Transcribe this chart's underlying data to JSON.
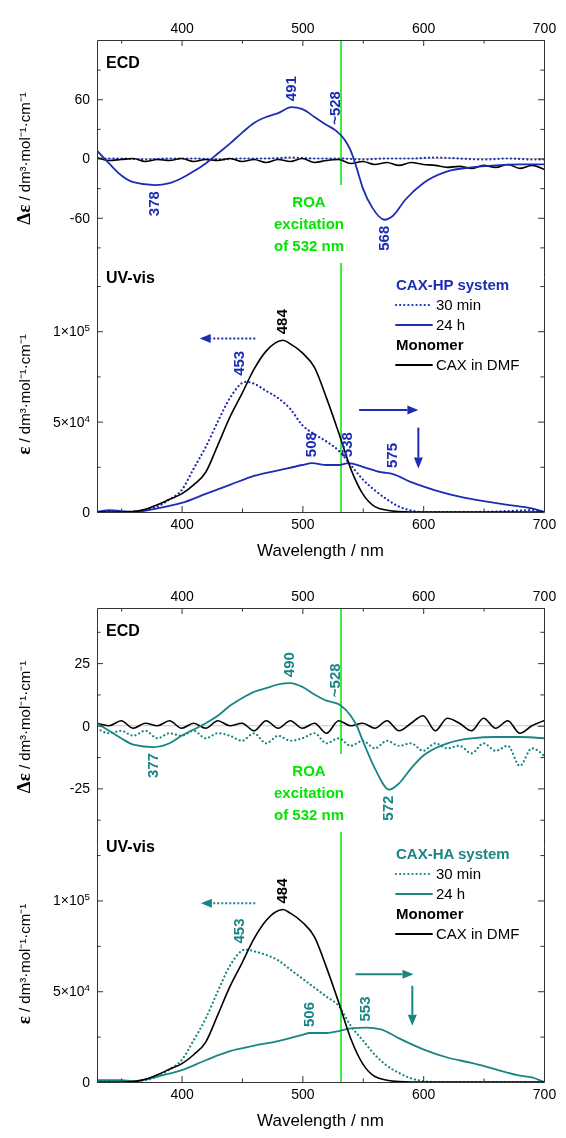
{
  "chart_data": [
    {
      "type": "line",
      "xlim": [
        330,
        700
      ],
      "xticks": [
        {
          "value": 350,
          "label": null
        },
        400,
        {
          "value": 450,
          "label": null
        },
        500,
        {
          "value": 550,
          "label": null
        },
        600,
        {
          "value": 650,
          "label": null
        },
        700
      ],
      "ylim": [
        -120,
        120
      ],
      "yticks": [
        {
          "value": -90,
          "label": null
        },
        -60,
        {
          "value": -30,
          "label": null
        },
        0,
        {
          "value": 30,
          "label": null
        },
        60,
        {
          "value": 90,
          "label": null
        }
      ],
      "ylabel": "Δε / dm³·mol⁻¹·cm⁻¹",
      "annotations": [
        "ECD",
        {
          "text": "378",
          "x": 378,
          "y": -27
        },
        {
          "text": "491",
          "x": 491,
          "y": 52
        },
        {
          "text": "~528",
          "x": 528,
          "y": 28
        },
        {
          "text": "568",
          "x": 568,
          "y": -62
        }
      ],
      "ref_lines": [
        {
          "axis": "y",
          "value": 0,
          "color": "#c8c8c8"
        },
        {
          "axis": "x",
          "value": 532,
          "label": "ROA excitation of 532 nm",
          "color": "#00e600"
        }
      ],
      "series": [
        {
          "color": "#1b2db3",
          "line_style": "dotted",
          "x": [
            330,
            350,
            370,
            390,
            410,
            430,
            450,
            470,
            490,
            510,
            530,
            550,
            570,
            590,
            610,
            630,
            650,
            670,
            690,
            700
          ],
          "values": [
            0,
            0,
            -1,
            0,
            0,
            -1,
            0,
            0,
            1,
            0,
            0,
            -1,
            0,
            0,
            1,
            0,
            -1,
            0,
            -1,
            -1
          ]
        },
        {
          "color": "#000000",
          "line_style": "solid",
          "x": [
            330,
            340,
            350,
            360,
            370,
            380,
            390,
            400,
            410,
            420,
            430,
            440,
            450,
            460,
            470,
            480,
            490,
            500,
            510,
            520,
            530,
            540,
            550,
            560,
            570,
            580,
            590,
            600,
            610,
            620,
            630,
            640,
            650,
            660,
            670,
            680,
            690,
            700
          ],
          "values": [
            1,
            -2,
            -1,
            0,
            -3,
            -1,
            -2,
            0,
            -3,
            -1,
            -2,
            0,
            -3,
            -1,
            -4,
            -1,
            -3,
            0,
            -4,
            -2,
            -1,
            -5,
            -3,
            -6,
            -4,
            -7,
            -4,
            -6,
            -7,
            -9,
            -8,
            -10,
            -7,
            -9,
            -6,
            -10,
            -7,
            -11
          ]
        },
        {
          "color": "#1b2db3",
          "line_style": "solid",
          "x": [
            330,
            340,
            350,
            360,
            378,
            390,
            400,
            410,
            420,
            430,
            440,
            450,
            460,
            470,
            480,
            491,
            500,
            510,
            520,
            528,
            535,
            540,
            545,
            550,
            558,
            568,
            575,
            585,
            600,
            620,
            640,
            660,
            680,
            700
          ],
          "values": [
            8,
            -5,
            -17,
            -24,
            -27,
            -25,
            -20,
            -13,
            -5,
            5,
            15,
            26,
            36,
            42,
            46,
            52,
            50,
            42,
            34,
            28,
            19,
            8,
            -10,
            -30,
            -50,
            -62,
            -58,
            -42,
            -25,
            -13,
            -9,
            -7,
            -6,
            -6
          ]
        }
      ]
    },
    {
      "type": "line",
      "xlim": [
        330,
        700
      ],
      "xticks": [
        {
          "value": 350,
          "label": null
        },
        400,
        {
          "value": 450,
          "label": null
        },
        500,
        {
          "value": 550,
          "label": null
        },
        600,
        {
          "value": 650,
          "label": null
        },
        700
      ],
      "ylim": [
        0,
        130000
      ],
      "yticks": [
        0,
        {
          "value": 25000,
          "label": null
        },
        {
          "value": 50000,
          "label": "5×10$^{4}$"
        },
        {
          "value": 75000,
          "label": null
        },
        {
          "value": 100000,
          "label": "1×10$^{5}$"
        },
        {
          "value": 125000,
          "label": null
        }
      ],
      "xlabel": "Wavelength / nm",
      "ylabel": "ε / dm³·mol⁻¹·cm⁻¹",
      "legend": "top right",
      "legend_title": "CAX-HP system",
      "annotations": [
        "UV-vis",
        {
          "text": "484",
          "x": 484,
          "y": 95000
        },
        {
          "text": "453",
          "x": 448,
          "y": 72000
        },
        {
          "text": "508",
          "x": 508,
          "y": 27000
        },
        {
          "text": "538",
          "x": 538,
          "y": 27000
        },
        {
          "text": "575",
          "x": 575,
          "y": 21000
        },
        "Monomer"
      ],
      "ref_lines": [
        {
          "axis": "x",
          "value": 532,
          "color": "#00e600"
        }
      ],
      "series": [
        {
          "name": "30 min",
          "color": "#1b2db3",
          "line_style": "dotted",
          "x": [
            330,
            350,
            360,
            370,
            380,
            390,
            400,
            410,
            420,
            430,
            440,
            453,
            460,
            470,
            480,
            490,
            500,
            510,
            520,
            530,
            540,
            550,
            560,
            570,
            580,
            590,
            600,
            640,
            670,
            690,
            700
          ],
          "values": [
            0,
            0,
            300,
            1000,
            3000,
            7000,
            12000,
            24000,
            36000,
            50000,
            63000,
            72000,
            71000,
            67000,
            63000,
            57000,
            48000,
            43000,
            39000,
            34000,
            26000,
            18000,
            12000,
            7000,
            3000,
            800,
            0,
            0,
            500,
            1000,
            0
          ]
        },
        {
          "name": "24 h",
          "color": "#1b2db3",
          "line_style": "solid",
          "x": [
            330,
            340,
            350,
            360,
            380,
            400,
            420,
            440,
            460,
            480,
            500,
            508,
            520,
            530,
            538,
            550,
            565,
            575,
            590,
            610,
            630,
            650,
            670,
            690,
            700
          ],
          "values": [
            0,
            1000,
            500,
            0,
            2000,
            5000,
            10000,
            15000,
            20000,
            23000,
            26000,
            27000,
            26000,
            26000,
            27000,
            25000,
            22000,
            21000,
            16500,
            12000,
            8500,
            6000,
            4000,
            2000,
            0
          ]
        },
        {
          "name": "CAX in DMF",
          "color": "#000000",
          "line_style": "solid",
          "x": [
            330,
            350,
            360,
            370,
            380,
            390,
            400,
            410,
            420,
            430,
            440,
            450,
            460,
            470,
            484,
            490,
            500,
            510,
            520,
            530,
            540,
            550,
            560,
            570,
            580,
            590,
            700
          ],
          "values": [
            0,
            0,
            200,
            1500,
            4000,
            7000,
            10000,
            15000,
            22000,
            37000,
            52500,
            65500,
            79000,
            89000,
            95000,
            93000,
            88000,
            80000,
            63000,
            44000,
            24000,
            10000,
            3000,
            1000,
            200,
            0,
            0
          ]
        }
      ]
    },
    {
      "type": "line",
      "xlim": [
        330,
        700
      ],
      "xticks": [
        {
          "value": 350,
          "label": null
        },
        400,
        {
          "value": 450,
          "label": null
        },
        500,
        {
          "value": 550,
          "label": null
        },
        600,
        {
          "value": 650,
          "label": null
        },
        700
      ],
      "ylim": [
        -48,
        47
      ],
      "yticks": [
        {
          "value": -37.5,
          "label": null
        },
        -25,
        {
          "value": -12.5,
          "label": null
        },
        0,
        {
          "value": 12.5,
          "label": null
        },
        25,
        {
          "value": 37.5,
          "label": null
        }
      ],
      "ylabel": "Δε / dm³·mol⁻¹·cm⁻¹",
      "annotations": [
        "ECD",
        {
          "text": "377",
          "x": 377,
          "y": -8.5
        },
        {
          "text": "490",
          "x": 490,
          "y": 17
        },
        {
          "text": "~528",
          "x": 528,
          "y": 9
        },
        {
          "text": "572",
          "x": 572,
          "y": -25.5
        }
      ],
      "ref_lines": [
        {
          "axis": "y",
          "value": 0,
          "color": "#c8c8c8"
        },
        {
          "axis": "x",
          "value": 532,
          "label": "ROA excitation of 532 nm",
          "color": "#00e600"
        }
      ],
      "series": [
        {
          "color": "#1a8585",
          "line_style": "dotted",
          "x": [
            330,
            340,
            350,
            360,
            370,
            380,
            390,
            400,
            410,
            420,
            430,
            440,
            450,
            460,
            470,
            480,
            490,
            500,
            510,
            520,
            530,
            540,
            550,
            560,
            570,
            580,
            590,
            600,
            610,
            620,
            630,
            640,
            650,
            660,
            670,
            680,
            690,
            700
          ],
          "values": [
            -1,
            -3,
            -2,
            -4,
            -2,
            -5,
            -3,
            -4,
            -2,
            -5,
            -3,
            -4,
            -6,
            -3,
            -7,
            -4,
            -6,
            -5,
            -3,
            -7,
            -5,
            -8,
            -6,
            -9,
            -6,
            -8,
            -7,
            -10,
            -7,
            -9,
            -8,
            -11,
            -7,
            -10,
            -8,
            -16,
            -9,
            -12
          ]
        },
        {
          "color": "#000000",
          "line_style": "solid",
          "x": [
            330,
            340,
            350,
            360,
            370,
            380,
            390,
            400,
            410,
            420,
            430,
            440,
            450,
            460,
            470,
            480,
            490,
            500,
            510,
            520,
            530,
            540,
            550,
            560,
            570,
            580,
            590,
            600,
            610,
            620,
            630,
            640,
            650,
            660,
            670,
            680,
            690,
            700
          ],
          "values": [
            1,
            0,
            2,
            -1,
            1,
            0,
            2,
            -1,
            1,
            -1,
            2,
            0,
            1,
            -2,
            2,
            -1,
            2,
            -1,
            1,
            -3,
            2,
            0,
            1,
            -1,
            2,
            -2,
            1,
            4,
            -2,
            3,
            1,
            -2,
            3,
            -1,
            2,
            -3,
            0,
            2
          ]
        },
        {
          "color": "#1a8585",
          "line_style": "solid",
          "x": [
            330,
            340,
            350,
            360,
            377,
            390,
            400,
            410,
            420,
            430,
            440,
            450,
            460,
            470,
            480,
            490,
            500,
            510,
            520,
            528,
            532,
            540,
            545,
            550,
            560,
            572,
            580,
            590,
            600,
            610,
            620,
            640,
            660,
            680,
            700
          ],
          "values": [
            1,
            -2,
            -5,
            -7.5,
            -8.5,
            -7,
            -4,
            -1.5,
            1,
            4,
            8,
            11,
            13.5,
            15,
            16.5,
            17,
            15.5,
            12.5,
            10,
            9,
            8,
            4,
            0,
            -6,
            -17,
            -25.5,
            -23,
            -17,
            -12,
            -9,
            -7,
            -5,
            -4.5,
            -4.5,
            -5
          ]
        }
      ]
    },
    {
      "type": "line",
      "xlim": [
        330,
        700
      ],
      "xticks": [
        {
          "value": 350,
          "label": null
        },
        400,
        {
          "value": 450,
          "label": null
        },
        500,
        {
          "value": 550,
          "label": null
        },
        600,
        {
          "value": 650,
          "label": null
        },
        700
      ],
      "ylim": [
        0,
        130000
      ],
      "yticks": [
        0,
        {
          "value": 25000,
          "label": null
        },
        {
          "value": 50000,
          "label": "5×10$^{4}$"
        },
        {
          "value": 75000,
          "label": null
        },
        {
          "value": 100000,
          "label": "1×10$^{5}$"
        },
        {
          "value": 125000,
          "label": null
        }
      ],
      "xlabel": "Wavelength / nm",
      "ylabel": "ε / dm³·mol⁻¹·cm⁻¹",
      "legend": "top right",
      "legend_title": "CAX-HA system",
      "annotations": [
        "UV-vis",
        {
          "text": "484",
          "x": 484,
          "y": 95000
        },
        {
          "text": "453",
          "x": 448,
          "y": 73000
        },
        {
          "text": "506",
          "x": 506,
          "y": 27000
        },
        {
          "text": "553",
          "x": 553,
          "y": 30000
        },
        "Monomer"
      ],
      "ref_lines": [
        {
          "axis": "x",
          "value": 532,
          "color": "#00e600"
        }
      ],
      "series": [
        {
          "name": "30 min",
          "color": "#1a8585",
          "line_style": "dotted",
          "x": [
            330,
            350,
            360,
            370,
            380,
            390,
            400,
            410,
            420,
            430,
            440,
            453,
            460,
            470,
            480,
            490,
            500,
            510,
            520,
            530,
            540,
            550,
            560,
            570,
            580,
            590,
            600,
            610,
            700
          ],
          "values": [
            0,
            0,
            300,
            1000,
            3000,
            7000,
            12000,
            23000,
            35000,
            50000,
            64000,
            73000,
            72000,
            70000,
            67000,
            62000,
            57000,
            52000,
            47000,
            42000,
            31000,
            23000,
            15000,
            9000,
            5000,
            2000,
            500,
            0,
            0
          ]
        },
        {
          "name": "24 h",
          "color": "#1a8585",
          "line_style": "solid",
          "x": [
            330,
            350,
            360,
            380,
            400,
            420,
            440,
            460,
            480,
            500,
            506,
            520,
            530,
            540,
            553,
            565,
            580,
            600,
            620,
            640,
            660,
            680,
            690,
            700
          ],
          "values": [
            1000,
            1000,
            500,
            3000,
            6500,
            12000,
            17000,
            20000,
            22500,
            26000,
            27000,
            27000,
            28000,
            29500,
            30000,
            29000,
            24000,
            18000,
            13500,
            10500,
            7000,
            3500,
            2500,
            0
          ]
        },
        {
          "name": "CAX in DMF",
          "color": "#000000",
          "line_style": "solid",
          "x": [
            330,
            350,
            360,
            370,
            380,
            390,
            400,
            410,
            420,
            430,
            440,
            450,
            460,
            470,
            484,
            490,
            500,
            510,
            520,
            530,
            540,
            550,
            560,
            570,
            580,
            590,
            700
          ],
          "values": [
            0,
            0,
            200,
            1500,
            4000,
            7000,
            10000,
            15000,
            22000,
            37000,
            52500,
            65500,
            79000,
            89000,
            95000,
            93000,
            88000,
            80000,
            63000,
            44000,
            24000,
            10000,
            3000,
            1000,
            200,
            0,
            0
          ]
        }
      ]
    }
  ]
}
